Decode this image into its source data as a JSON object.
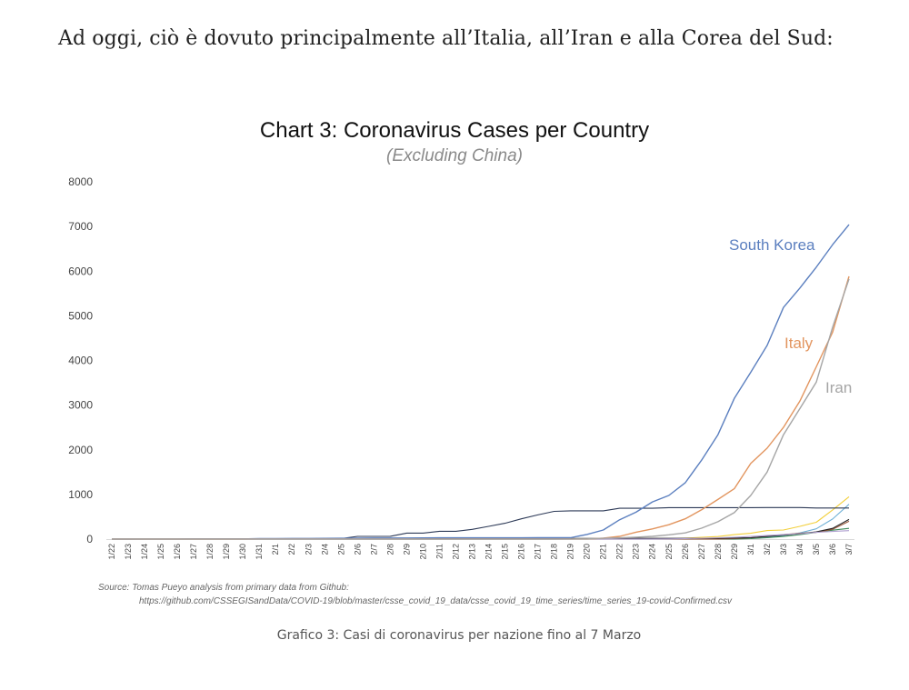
{
  "page": {
    "intro_text": "Ad oggi, ciò è dovuto principalmente all’Italia, all’Iran e alla Corea del Sud:",
    "caption": "Grafico 3: Casi di coronavirus per nazione fino al 7 Marzo"
  },
  "chart_data": {
    "type": "line",
    "title": "Chart 3: Coronavirus Cases per Country",
    "subtitle": "(Excluding China)",
    "xlabel": "",
    "ylabel": "",
    "ylim": [
      0,
      8000
    ],
    "yticks": [
      0,
      1000,
      2000,
      3000,
      4000,
      5000,
      6000,
      7000,
      8000
    ],
    "grid": false,
    "legend": "inline-labels",
    "categories": [
      "1/22",
      "1/23",
      "1/24",
      "1/25",
      "1/26",
      "1/27",
      "1/28",
      "1/29",
      "1/30",
      "1/31",
      "2/1",
      "2/2",
      "2/3",
      "2/4",
      "2/5",
      "2/6",
      "2/7",
      "2/8",
      "2/9",
      "2/10",
      "2/11",
      "2/12",
      "2/13",
      "2/14",
      "2/15",
      "2/16",
      "2/17",
      "2/18",
      "2/19",
      "2/20",
      "2/21",
      "2/22",
      "2/23",
      "2/24",
      "2/25",
      "2/26",
      "2/27",
      "2/28",
      "2/29",
      "3/1",
      "3/2",
      "3/3",
      "3/4",
      "3/5",
      "3/6",
      "3/7"
    ],
    "series": [
      {
        "name": "South Korea",
        "color": "#5b7fbf",
        "labeled": true,
        "values": [
          1,
          1,
          2,
          2,
          3,
          4,
          4,
          4,
          4,
          11,
          12,
          15,
          15,
          16,
          19,
          23,
          24,
          24,
          25,
          27,
          28,
          28,
          28,
          28,
          28,
          29,
          30,
          31,
          31,
          104,
          204,
          433,
          602,
          833,
          977,
          1261,
          1766,
          2337,
          3150,
          3736,
          4335,
          5186,
          5621,
          6088,
          6593,
          7041
        ]
      },
      {
        "name": "Italy",
        "color": "#e2955f",
        "labeled": true,
        "values": [
          0,
          0,
          0,
          0,
          0,
          0,
          0,
          0,
          0,
          2,
          2,
          2,
          2,
          2,
          2,
          2,
          3,
          3,
          3,
          3,
          3,
          3,
          3,
          3,
          3,
          3,
          3,
          3,
          3,
          3,
          20,
          62,
          155,
          229,
          322,
          453,
          655,
          888,
          1128,
          1694,
          2036,
          2502,
          3089,
          3858,
          4636,
          5883
        ]
      },
      {
        "name": "Iran",
        "color": "#a5a5a5",
        "labeled": true,
        "values": [
          0,
          0,
          0,
          0,
          0,
          0,
          0,
          0,
          0,
          0,
          0,
          0,
          0,
          0,
          0,
          0,
          0,
          0,
          0,
          0,
          0,
          0,
          0,
          0,
          0,
          0,
          0,
          0,
          2,
          5,
          18,
          28,
          43,
          61,
          95,
          139,
          245,
          388,
          593,
          978,
          1501,
          2336,
          2922,
          3513,
          4747,
          5823
        ]
      },
      {
        "name": "",
        "color": "#f2cf3a",
        "labeled": false,
        "values": [
          0,
          0,
          0,
          0,
          0,
          0,
          0,
          0,
          0,
          0,
          0,
          0,
          0,
          0,
          0,
          0,
          0,
          0,
          0,
          0,
          0,
          0,
          0,
          0,
          0,
          0,
          0,
          0,
          0,
          0,
          0,
          0,
          0,
          0,
          0,
          20,
          40,
          57,
          100,
          130,
          191,
          204,
          285,
          377,
          653,
          949
        ]
      },
      {
        "name": "",
        "color": "#6fb0d6",
        "labeled": false,
        "values": [
          0,
          0,
          0,
          0,
          0,
          0,
          0,
          0,
          0,
          0,
          0,
          0,
          0,
          0,
          0,
          0,
          0,
          0,
          0,
          0,
          0,
          0,
          0,
          0,
          0,
          0,
          0,
          0,
          0,
          0,
          0,
          0,
          2,
          3,
          4,
          6,
          12,
          15,
          20,
          28,
          44,
          80,
          138,
          230,
          450,
          780
        ]
      },
      {
        "name": "",
        "color": "#2d3a57",
        "labeled": false,
        "values": [
          0,
          0,
          0,
          0,
          0,
          0,
          0,
          0,
          0,
          0,
          0,
          0,
          0,
          0,
          10,
          61,
          61,
          64,
          135,
          135,
          175,
          175,
          218,
          285,
          355,
          454,
          542,
          621,
          634,
          634,
          634,
          691,
          691,
          691,
          705,
          705,
          705,
          705,
          705,
          705,
          706,
          706,
          706,
          696,
          696,
          696
        ]
      },
      {
        "name": "",
        "color": "#3e8a5a",
        "labeled": false,
        "values": [
          0,
          0,
          0,
          0,
          0,
          0,
          0,
          0,
          0,
          0,
          0,
          0,
          0,
          0,
          0,
          0,
          0,
          0,
          0,
          0,
          0,
          0,
          0,
          0,
          0,
          0,
          0,
          0,
          0,
          0,
          0,
          0,
          0,
          0,
          0,
          0,
          0,
          0,
          0,
          10,
          30,
          60,
          100,
          150,
          200,
          240
        ]
      },
      {
        "name": "",
        "color": "#9b5a3c",
        "labeled": false,
        "values": [
          0,
          0,
          0,
          0,
          0,
          0,
          0,
          0,
          0,
          0,
          0,
          0,
          0,
          0,
          0,
          0,
          0,
          0,
          0,
          0,
          0,
          0,
          0,
          0,
          0,
          0,
          0,
          0,
          0,
          0,
          0,
          0,
          0,
          0,
          0,
          0,
          0,
          0,
          10,
          30,
          60,
          100,
          130,
          150,
          220,
          400
        ]
      },
      {
        "name": "",
        "color": "#222222",
        "labeled": false,
        "values": [
          2,
          2,
          2,
          2,
          3,
          4,
          4,
          4,
          4,
          5,
          8,
          8,
          11,
          11,
          12,
          12,
          12,
          12,
          12,
          12,
          13,
          13,
          14,
          14,
          14,
          14,
          14,
          14,
          14,
          15,
          15,
          15,
          16,
          16,
          16,
          16,
          18,
          18,
          25,
          30,
          60,
          90,
          120,
          160,
          240,
          440
        ]
      },
      {
        "name": "",
        "color": "#b0a0d0",
        "labeled": false,
        "values": [
          0,
          0,
          0,
          0,
          0,
          0,
          0,
          0,
          0,
          0,
          0,
          0,
          0,
          0,
          0,
          0,
          0,
          0,
          0,
          0,
          0,
          0,
          0,
          0,
          0,
          0,
          0,
          0,
          0,
          0,
          0,
          1,
          2,
          3,
          4,
          10,
          20,
          30,
          40,
          60,
          80,
          100,
          120,
          150,
          170,
          190
        ]
      }
    ]
  },
  "source_note": {
    "line1": "Source: Tomas Pueyo analysis from primary data from Github:",
    "line2": "https://github.com/CSSEGISandData/COVID-19/blob/master/csse_covid_19_data/csse_covid_19_time_series/time_series_19-covid-Confirmed.csv"
  }
}
